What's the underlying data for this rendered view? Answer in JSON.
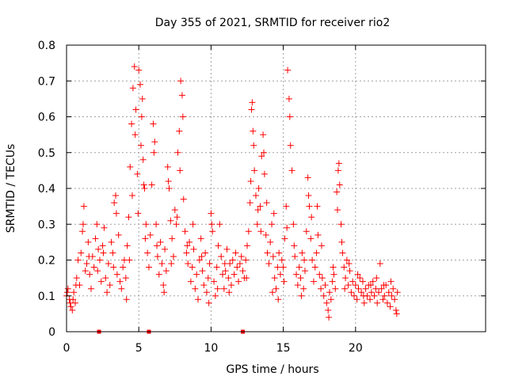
{
  "chart_data": {
    "type": "scatter",
    "title": "Day 355 of 2021, SRMTID for receiver rio2",
    "xlabel": "GPS time / hours",
    "ylabel": "SRMTID / TECUs",
    "xlim": [
      0,
      29
    ],
    "ylim": [
      0,
      0.8
    ],
    "xticks": [
      0,
      5,
      10,
      15,
      20
    ],
    "xtick_labels": [
      "0",
      "5",
      "10",
      "15",
      "20"
    ],
    "yticks": [
      0,
      0.1,
      0.2,
      0.3,
      0.4,
      0.5,
      0.6,
      0.7,
      0.8
    ],
    "ytick_labels": [
      "0",
      "0.1",
      "0.2",
      "0.3",
      "0.4",
      "0.5",
      "0.6",
      "0.7",
      "0.8"
    ],
    "grid": true,
    "marker": "plus",
    "color": "#ff0000",
    "gap_markers_x": [
      2.25,
      5.7,
      12.2
    ],
    "series": [
      {
        "name": "SRMTID",
        "points": [
          [
            0.0,
            0.1
          ],
          [
            0.1,
            0.12
          ],
          [
            0.2,
            0.09
          ],
          [
            0.3,
            0.07
          ],
          [
            0.4,
            0.06
          ],
          [
            0.5,
            0.11
          ],
          [
            0.6,
            0.08
          ],
          [
            0.7,
            0.15
          ],
          [
            0.8,
            0.2
          ],
          [
            0.9,
            0.13
          ],
          [
            1.0,
            0.22
          ],
          [
            1.1,
            0.28
          ],
          [
            1.2,
            0.35
          ],
          [
            1.3,
            0.17
          ],
          [
            1.4,
            0.19
          ],
          [
            1.5,
            0.25
          ],
          [
            1.6,
            0.16
          ],
          [
            1.7,
            0.12
          ],
          [
            1.8,
            0.21
          ],
          [
            1.9,
            0.18
          ],
          [
            2.0,
            0.26
          ],
          [
            2.1,
            0.3
          ],
          [
            2.2,
            0.23
          ],
          [
            2.3,
            0.2
          ],
          [
            2.4,
            0.14
          ],
          [
            2.5,
            0.24
          ],
          [
            2.6,
            0.29
          ],
          [
            2.7,
            0.15
          ],
          [
            2.8,
            0.11
          ],
          [
            2.9,
            0.19
          ],
          [
            3.0,
            0.13
          ],
          [
            3.1,
            0.25
          ],
          [
            3.2,
            0.22
          ],
          [
            3.3,
            0.36
          ],
          [
            3.4,
            0.38
          ],
          [
            3.5,
            0.16
          ],
          [
            3.6,
            0.27
          ],
          [
            3.7,
            0.14
          ],
          [
            3.8,
            0.12
          ],
          [
            3.9,
            0.18
          ],
          [
            4.0,
            0.2
          ],
          [
            4.1,
            0.15
          ],
          [
            4.2,
            0.24
          ],
          [
            4.3,
            0.32
          ],
          [
            4.4,
            0.46
          ],
          [
            4.5,
            0.58
          ],
          [
            4.6,
            0.68
          ],
          [
            4.7,
            0.74
          ],
          [
            4.8,
            0.62
          ],
          [
            4.9,
            0.44
          ],
          [
            5.0,
            0.73
          ],
          [
            5.1,
            0.69
          ],
          [
            5.2,
            0.6
          ],
          [
            5.3,
            0.48
          ],
          [
            5.4,
            0.4
          ],
          [
            5.5,
            0.3
          ],
          [
            5.6,
            0.22
          ],
          [
            5.7,
            0.18
          ],
          [
            5.8,
            0.27
          ],
          [
            5.9,
            0.41
          ],
          [
            6.0,
            0.58
          ],
          [
            6.1,
            0.53
          ],
          [
            6.2,
            0.3
          ],
          [
            6.3,
            0.21
          ],
          [
            6.4,
            0.16
          ],
          [
            6.5,
            0.25
          ],
          [
            6.6,
            0.19
          ],
          [
            6.7,
            0.13
          ],
          [
            6.8,
            0.23
          ],
          [
            6.9,
            0.17
          ],
          [
            7.0,
            0.46
          ],
          [
            7.1,
            0.4
          ],
          [
            7.2,
            0.31
          ],
          [
            7.3,
            0.26
          ],
          [
            7.4,
            0.21
          ],
          [
            7.5,
            0.34
          ],
          [
            7.6,
            0.3
          ],
          [
            7.7,
            0.5
          ],
          [
            7.8,
            0.56
          ],
          [
            7.9,
            0.7
          ],
          [
            8.0,
            0.66
          ],
          [
            8.1,
            0.37
          ],
          [
            8.2,
            0.28
          ],
          [
            8.3,
            0.22
          ],
          [
            8.4,
            0.19
          ],
          [
            8.5,
            0.25
          ],
          [
            8.6,
            0.14
          ],
          [
            8.7,
            0.18
          ],
          [
            8.8,
            0.23
          ],
          [
            8.9,
            0.12
          ],
          [
            9.0,
            0.16
          ],
          [
            9.1,
            0.09
          ],
          [
            9.2,
            0.2
          ],
          [
            9.3,
            0.26
          ],
          [
            9.4,
            0.17
          ],
          [
            9.5,
            0.13
          ],
          [
            9.6,
            0.22
          ],
          [
            9.7,
            0.11
          ],
          [
            9.8,
            0.15
          ],
          [
            9.9,
            0.19
          ],
          [
            10.0,
            0.33
          ],
          [
            10.1,
            0.28
          ],
          [
            10.2,
            0.14
          ],
          [
            10.3,
            0.1
          ],
          [
            10.4,
            0.18
          ],
          [
            10.5,
            0.24
          ],
          [
            10.6,
            0.3
          ],
          [
            10.7,
            0.21
          ],
          [
            10.8,
            0.16
          ],
          [
            10.9,
            0.12
          ],
          [
            11.0,
            0.17
          ],
          [
            11.1,
            0.23
          ],
          [
            11.2,
            0.15
          ],
          [
            11.3,
            0.19
          ],
          [
            11.4,
            0.13
          ],
          [
            11.5,
            0.2
          ],
          [
            11.6,
            0.16
          ],
          [
            11.7,
            0.22
          ],
          [
            11.8,
            0.18
          ],
          [
            11.9,
            0.14
          ],
          [
            12.0,
            0.19
          ],
          [
            12.1,
            0.21
          ],
          [
            12.2,
            0.17
          ],
          [
            12.3,
            0.15
          ],
          [
            12.4,
            0.2
          ],
          [
            12.5,
            0.24
          ],
          [
            12.6,
            0.28
          ],
          [
            12.7,
            0.36
          ],
          [
            12.8,
            0.62
          ],
          [
            12.9,
            0.56
          ],
          [
            13.0,
            0.45
          ],
          [
            13.1,
            0.38
          ],
          [
            13.2,
            0.3
          ],
          [
            13.3,
            0.4
          ],
          [
            13.4,
            0.35
          ],
          [
            13.5,
            0.49
          ],
          [
            13.6,
            0.55
          ],
          [
            13.7,
            0.44
          ],
          [
            13.8,
            0.27
          ],
          [
            13.9,
            0.22
          ],
          [
            14.0,
            0.19
          ],
          [
            14.1,
            0.25
          ],
          [
            14.2,
            0.3
          ],
          [
            14.3,
            0.21
          ],
          [
            14.4,
            0.15
          ],
          [
            14.5,
            0.12
          ],
          [
            14.6,
            0.18
          ],
          [
            14.7,
            0.22
          ],
          [
            14.8,
            0.16
          ],
          [
            14.9,
            0.2
          ],
          [
            15.0,
            0.18
          ],
          [
            15.1,
            0.26
          ],
          [
            15.2,
            0.35
          ],
          [
            15.3,
            0.73
          ],
          [
            15.4,
            0.65
          ],
          [
            15.5,
            0.52
          ],
          [
            15.6,
            0.45
          ],
          [
            15.7,
            0.3
          ],
          [
            15.8,
            0.21
          ],
          [
            15.9,
            0.16
          ],
          [
            16.0,
            0.13
          ],
          [
            16.1,
            0.18
          ],
          [
            16.2,
            0.15
          ],
          [
            16.3,
            0.22
          ],
          [
            16.4,
            0.12
          ],
          [
            16.5,
            0.17
          ],
          [
            16.6,
            0.28
          ],
          [
            16.7,
            0.43
          ],
          [
            16.8,
            0.35
          ],
          [
            16.9,
            0.26
          ],
          [
            17.0,
            0.2
          ],
          [
            17.1,
            0.14
          ],
          [
            17.2,
            0.18
          ],
          [
            17.3,
            0.22
          ],
          [
            17.4,
            0.27
          ],
          [
            17.5,
            0.16
          ],
          [
            17.6,
            0.12
          ],
          [
            17.7,
            0.15
          ],
          [
            17.8,
            0.1
          ],
          [
            17.9,
            0.13
          ],
          [
            18.0,
            0.08
          ],
          [
            18.1,
            0.06
          ],
          [
            18.2,
            0.11
          ],
          [
            18.3,
            0.09
          ],
          [
            18.4,
            0.14
          ],
          [
            18.5,
            0.16
          ],
          [
            18.6,
            0.12
          ],
          [
            18.7,
            0.39
          ],
          [
            18.8,
            0.45
          ],
          [
            18.9,
            0.41
          ],
          [
            19.0,
            0.3
          ],
          [
            19.1,
            0.22
          ],
          [
            19.2,
            0.18
          ],
          [
            19.3,
            0.15
          ],
          [
            19.4,
            0.2
          ],
          [
            19.5,
            0.13
          ],
          [
            19.6,
            0.17
          ],
          [
            19.7,
            0.11
          ],
          [
            19.8,
            0.14
          ],
          [
            19.9,
            0.1
          ],
          [
            20.0,
            0.13
          ],
          [
            20.1,
            0.09
          ],
          [
            20.2,
            0.12
          ],
          [
            20.3,
            0.15
          ],
          [
            20.4,
            0.11
          ],
          [
            20.5,
            0.14
          ],
          [
            20.6,
            0.08
          ],
          [
            20.7,
            0.12
          ],
          [
            20.8,
            0.1
          ],
          [
            20.9,
            0.13
          ],
          [
            21.0,
            0.09
          ],
          [
            21.1,
            0.11
          ],
          [
            21.2,
            0.14
          ],
          [
            21.3,
            0.1
          ],
          [
            21.4,
            0.12
          ],
          [
            21.5,
            0.08
          ],
          [
            21.6,
            0.11
          ],
          [
            21.7,
            0.19
          ],
          [
            21.8,
            0.12
          ],
          [
            21.9,
            0.09
          ],
          [
            22.0,
            0.1
          ],
          [
            22.1,
            0.13
          ],
          [
            22.2,
            0.08
          ],
          [
            22.3,
            0.11
          ],
          [
            22.4,
            0.07
          ],
          [
            22.5,
            0.1
          ],
          [
            22.6,
            0.12
          ],
          [
            22.7,
            0.09
          ],
          [
            22.8,
            0.06
          ],
          [
            22.9,
            0.11
          ],
          [
            0.05,
            0.11
          ],
          [
            0.25,
            0.08
          ],
          [
            0.45,
            0.09
          ],
          [
            0.65,
            0.13
          ],
          [
            1.15,
            0.3
          ],
          [
            1.55,
            0.21
          ],
          [
            2.15,
            0.17
          ],
          [
            2.55,
            0.22
          ],
          [
            3.25,
            0.18
          ],
          [
            3.45,
            0.33
          ],
          [
            4.15,
            0.09
          ],
          [
            4.35,
            0.2
          ],
          [
            4.55,
            0.38
          ],
          [
            4.75,
            0.55
          ],
          [
            4.95,
            0.33
          ],
          [
            5.15,
            0.52
          ],
          [
            5.25,
            0.65
          ],
          [
            5.35,
            0.41
          ],
          [
            5.45,
            0.26
          ],
          [
            6.05,
            0.5
          ],
          [
            6.25,
            0.24
          ],
          [
            6.75,
            0.11
          ],
          [
            7.05,
            0.42
          ],
          [
            7.25,
            0.19
          ],
          [
            7.65,
            0.32
          ],
          [
            7.85,
            0.45
          ],
          [
            8.05,
            0.6
          ],
          [
            8.35,
            0.24
          ],
          [
            8.75,
            0.3
          ],
          [
            9.35,
            0.21
          ],
          [
            9.85,
            0.08
          ],
          [
            10.05,
            0.3
          ],
          [
            10.45,
            0.12
          ],
          [
            10.95,
            0.19
          ],
          [
            11.25,
            0.11
          ],
          [
            12.45,
            0.15
          ],
          [
            12.75,
            0.42
          ],
          [
            12.85,
            0.64
          ],
          [
            12.95,
            0.52
          ],
          [
            13.25,
            0.34
          ],
          [
            13.45,
            0.28
          ],
          [
            13.65,
            0.5
          ],
          [
            13.85,
            0.36
          ],
          [
            14.25,
            0.11
          ],
          [
            14.35,
            0.33
          ],
          [
            14.65,
            0.09
          ],
          [
            15.05,
            0.14
          ],
          [
            15.25,
            0.29
          ],
          [
            15.45,
            0.6
          ],
          [
            15.75,
            0.24
          ],
          [
            16.25,
            0.1
          ],
          [
            16.45,
            0.2
          ],
          [
            16.75,
            0.38
          ],
          [
            16.95,
            0.32
          ],
          [
            17.35,
            0.35
          ],
          [
            17.65,
            0.24
          ],
          [
            18.15,
            0.04
          ],
          [
            18.45,
            0.18
          ],
          [
            18.75,
            0.34
          ],
          [
            18.85,
            0.47
          ],
          [
            19.05,
            0.25
          ],
          [
            19.25,
            0.12
          ],
          [
            19.55,
            0.19
          ],
          [
            20.15,
            0.16
          ],
          [
            20.55,
            0.1
          ],
          [
            21.05,
            0.13
          ],
          [
            21.45,
            0.15
          ],
          [
            21.95,
            0.13
          ],
          [
            22.45,
            0.14
          ],
          [
            22.85,
            0.05
          ]
        ]
      }
    ]
  }
}
